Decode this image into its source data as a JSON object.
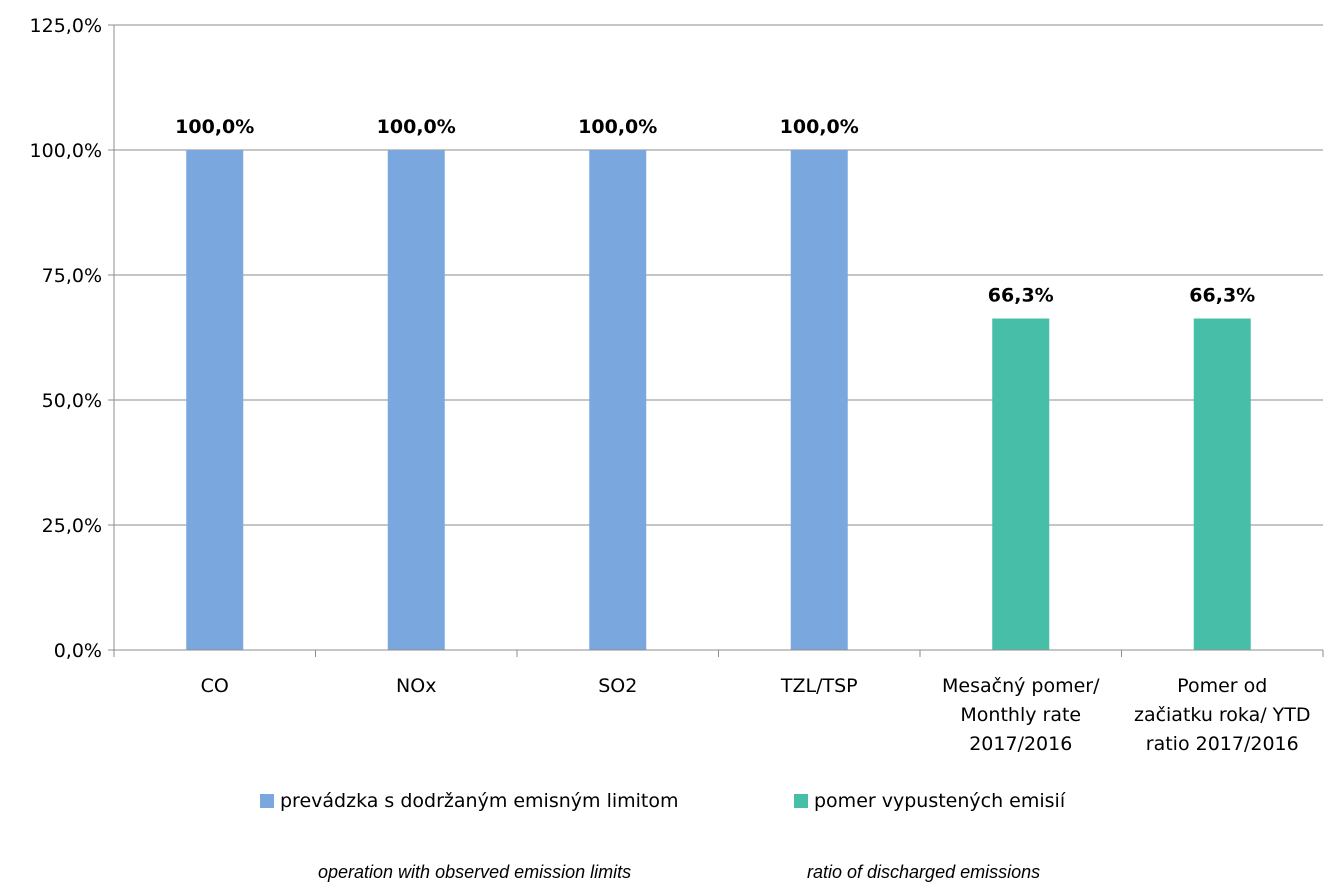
{
  "chart_data": {
    "type": "bar",
    "categories": [
      [
        "CO"
      ],
      [
        "NOx"
      ],
      [
        "SO2"
      ],
      [
        "TZL/TSP"
      ],
      [
        "Mesačný pomer/",
        "Monthly rate",
        "2017/2016"
      ],
      [
        "Pomer  od",
        "začiatku roka/ YTD",
        "ratio 2017/2016"
      ]
    ],
    "series": [
      {
        "name": "prevádzka s dodržaným emisným limitom",
        "color": "#7aa7de",
        "values": [
          100.0,
          100.0,
          100.0,
          100.0,
          null,
          null
        ],
        "labels": [
          "100,0%",
          "100,0%",
          "100,0%",
          "100,0%",
          "",
          ""
        ]
      },
      {
        "name": "pomer vypustených emisií",
        "color": "#47bfa8",
        "values": [
          null,
          null,
          null,
          null,
          66.3,
          66.3
        ],
        "labels": [
          "",
          "",
          "",
          "",
          "66,3%",
          "66,3%"
        ]
      }
    ],
    "yticks": [
      "0,0%",
      "25,0%",
      "50,0%",
      "75,0%",
      "100,0%",
      "125,0%"
    ],
    "ylim": [
      0,
      125
    ],
    "grid": true,
    "legend_position": "bottom"
  },
  "legend_subtitles": [
    "operation with observed emission limits",
    "ratio of discharged emissions"
  ]
}
